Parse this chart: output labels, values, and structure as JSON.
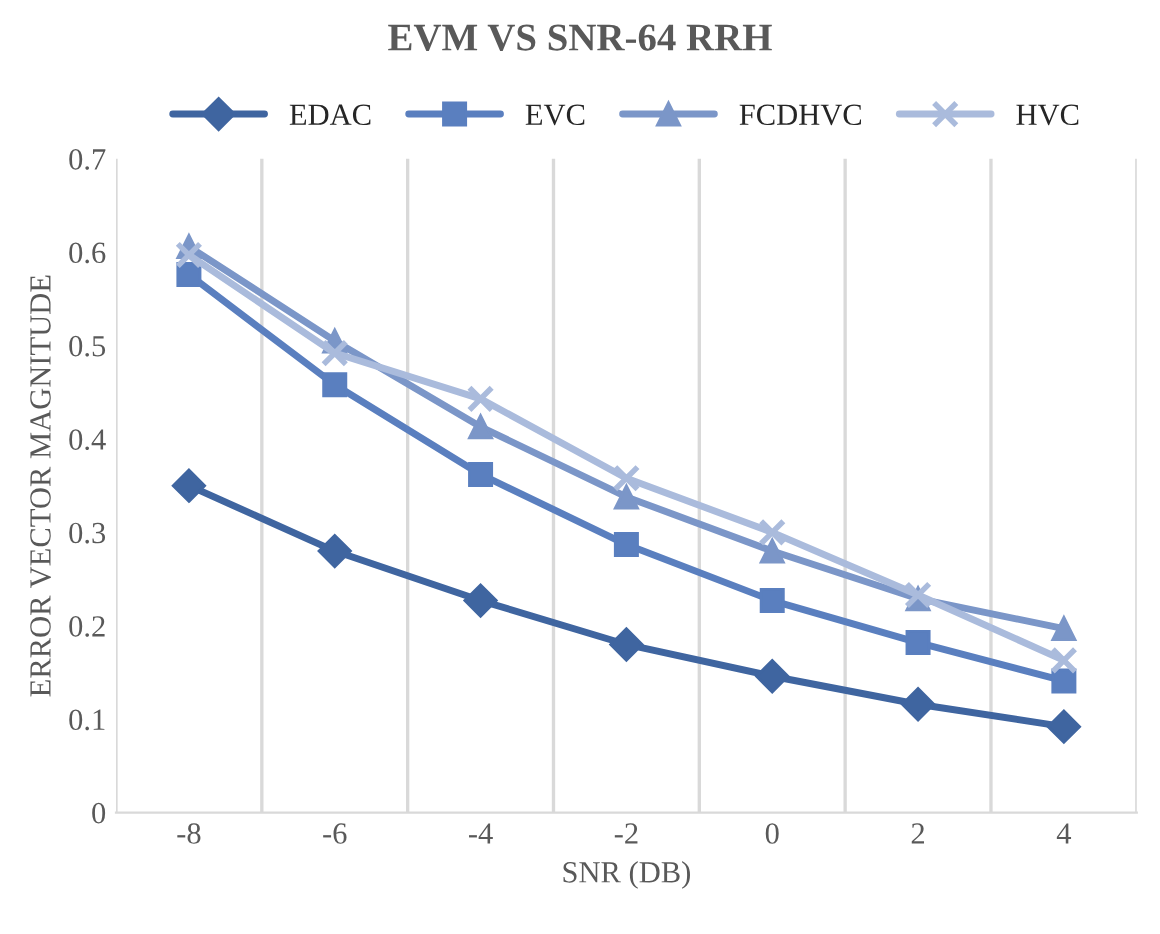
{
  "chart_data": {
    "type": "line",
    "title": "EVM VS SNR-64 RRH",
    "xlabel": "SNR (DB)",
    "ylabel": "ERROR VECTOR MAGNITUDE",
    "categories": [
      "-8",
      "-6",
      "-4",
      "-2",
      "0",
      "2",
      "4"
    ],
    "series": [
      {
        "name": "EDAC",
        "color": "#3f65a0",
        "marker": "diamond",
        "values": [
          0.35,
          0.28,
          0.227,
          0.18,
          0.146,
          0.116,
          0.092
        ]
      },
      {
        "name": "EVC",
        "color": "#5a7fbf",
        "marker": "square",
        "values": [
          0.576,
          0.458,
          0.362,
          0.287,
          0.227,
          0.182,
          0.141
        ]
      },
      {
        "name": "FCDHVC",
        "color": "#7b96c8",
        "marker": "triangle",
        "values": [
          0.606,
          0.505,
          0.413,
          0.338,
          0.28,
          0.229,
          0.197
        ]
      },
      {
        "name": "HVC",
        "color": "#aabbdc",
        "marker": "cross",
        "values": [
          0.597,
          0.492,
          0.443,
          0.358,
          0.3,
          0.233,
          0.163
        ]
      }
    ],
    "ylim": [
      0,
      0.7
    ],
    "yticks": [
      0,
      0.1,
      0.2,
      0.3,
      0.4,
      0.5,
      0.6,
      0.7
    ],
    "grid": "x",
    "legend": "top",
    "line_style": "solid"
  }
}
